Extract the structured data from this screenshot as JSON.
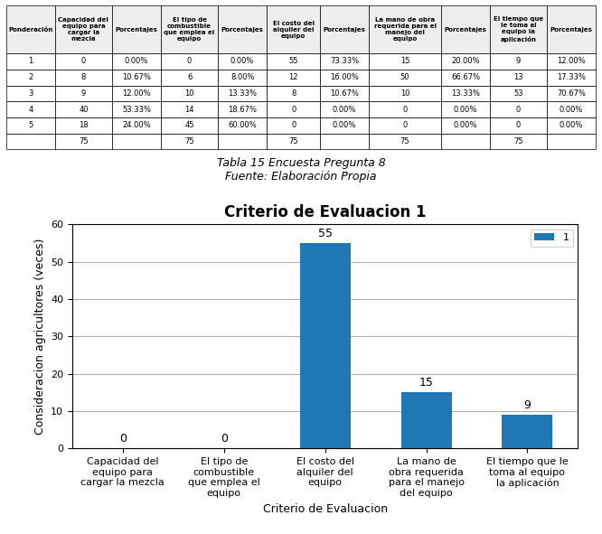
{
  "chart_data": [
    {
      "type": "bar",
      "title": "Criterio de Evaluacion 1",
      "x_label": "Criterio de Evaluacion",
      "y_label": "Consideracion agricultores (veces)",
      "categories": [
        "Capacidad del\nequipo para\ncargar la mezcla",
        "El tipo de\ncombustible\nque emplea el\nequipo",
        "El costo del\nalquiler del\nequipo",
        "La mano de\nobra requerida\npara el manejo\ndel equipo",
        "El tiempo que le\ntoma al equipo\nla aplicación"
      ],
      "series": [
        {
          "name": "1",
          "values": [
            0,
            0,
            55,
            15,
            9
          ]
        }
      ],
      "ylim": [
        0,
        60
      ],
      "yticks": [
        0,
        10,
        20,
        30,
        40,
        50,
        60
      ],
      "grid": true,
      "legend": "upper right",
      "data_labels": true
    },
    {
      "type": "table",
      "columns": [
        "Ponderación",
        "Capacidad del\nequipo para\ncargar la\nmezcla",
        "Porcentajes",
        "El tipo de\ncombustible\nque emplea el\nequipo",
        "Porcentajes",
        "El costo del\nalquiler del\nequipo",
        "Porcentajes",
        "La mano de obra\nrequerida para el\nmanejo del\nequipo",
        "Porcentajes",
        "El tiempo que\nle toma al\nequipo la\naplicación",
        "Porcentajes"
      ],
      "rows": [
        [
          "1",
          "0",
          "0.00%",
          "0",
          "0.00%",
          "55",
          "73.33%",
          "15",
          "20.00%",
          "9",
          "12.00%"
        ],
        [
          "2",
          "8",
          "10.67%",
          "6",
          "8.00%",
          "12",
          "16.00%",
          "50",
          "66.67%",
          "13",
          "17.33%"
        ],
        [
          "3",
          "9",
          "12.00%",
          "10",
          "13.33%",
          "8",
          "10.67%",
          "10",
          "13.33%",
          "53",
          "70.67%"
        ],
        [
          "4",
          "40",
          "53.33%",
          "14",
          "18.67%",
          "0",
          "0.00%",
          "0",
          "0.00%",
          "0",
          "0.00%"
        ],
        [
          "5",
          "18",
          "24.00%",
          "45",
          "60.00%",
          "0",
          "0.00%",
          "0",
          "0.00%",
          "0",
          "0.00%"
        ],
        [
          null,
          "75",
          null,
          "75",
          null,
          "75",
          null,
          "75",
          null,
          "75",
          null
        ]
      ],
      "annotations": [
        "Tabla 15 Encuesta Pregunta 8",
        "Fuente: Elaboración Propia"
      ]
    }
  ]
}
